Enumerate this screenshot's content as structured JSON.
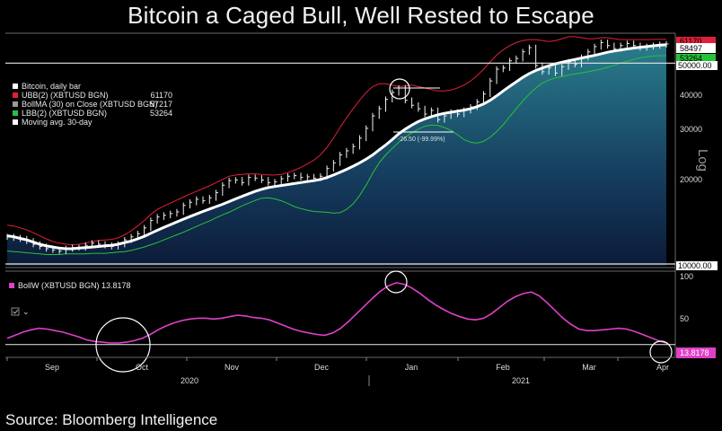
{
  "title": "Bitcoin a Caged Bull, Well Rested to Escape",
  "source": "Source: Bloomberg Intelligence",
  "chart_data": [
    {
      "type": "line",
      "y_scale": "log",
      "ylabel": "Log",
      "ylim": [
        9000,
        62000
      ],
      "y_ticks": [
        "40000",
        "30000",
        "20000"
      ],
      "x_ticks": [
        "Sep",
        "Oct",
        "Nov",
        "Dec",
        "Jan",
        "Feb",
        "Mar",
        "Apr"
      ],
      "x_years": [
        "2020",
        "2021"
      ],
      "legend": [
        {
          "name": "Bitcoin, daily bar",
          "value": "",
          "color": "#ffffff"
        },
        {
          "name": "UBB(2) (XBTUSD BGN)",
          "value": "61170",
          "color": "#e0203a"
        },
        {
          "name": "BollMA (30)  on Close (XBTUSD BGN)",
          "value": "57217",
          "color": "#9a9a9a"
        },
        {
          "name": "LBB(2) (XBTUSD BGN)",
          "value": "53264",
          "color": "#27c23a"
        },
        {
          "name": "Moving avg. 30-day",
          "value": "",
          "color": "#ffffff"
        }
      ],
      "last_value_tags": [
        {
          "text": "61170",
          "color": "#e0203a"
        },
        {
          "text": "58497",
          "color": "#ffffff"
        },
        {
          "text": "53264",
          "color": "#27c23a"
        }
      ],
      "reference_lines": [
        {
          "label": "50000.00",
          "value": 50000
        },
        {
          "label": "10000.00",
          "value": 10000
        }
      ],
      "annotation": "-26.50 (-99.99%)",
      "series": {
        "price_close": [
          11500,
          11400,
          11300,
          11100,
          10800,
          10600,
          10400,
          10300,
          10200,
          10400,
          10500,
          10500,
          10700,
          10900,
          10800,
          10700,
          10600,
          10800,
          11200,
          11500,
          11800,
          12400,
          13200,
          13600,
          13800,
          14000,
          14200,
          15000,
          15400,
          15800,
          15600,
          16000,
          16700,
          17800,
          18500,
          18600,
          18200,
          19000,
          18900,
          18600,
          18200,
          18300,
          18800,
          19200,
          19300,
          19000,
          19100,
          18900,
          19200,
          20500,
          21500,
          23000,
          23800,
          24700,
          26500,
          28800,
          32000,
          34000,
          36800,
          39000,
          40500,
          36500,
          35000,
          34000,
          32500,
          33500,
          31000,
          32000,
          33000,
          32500,
          33500,
          34500,
          36000,
          38500,
          43000,
          47500,
          48000,
          51000,
          52000,
          55000,
          57000,
          49000,
          46500,
          48000,
          46000,
          48500,
          50500,
          49500,
          52500,
          55000,
          57500,
          59500,
          58000,
          56500,
          58000,
          59000,
          58000,
          57000,
          57500,
          58000,
          58500,
          58800
        ],
        "ma30": [
          11600,
          11500,
          11350,
          11200,
          11000,
          10800,
          10650,
          10550,
          10450,
          10400,
          10400,
          10450,
          10500,
          10550,
          10600,
          10650,
          10700,
          10800,
          10950,
          11100,
          11300,
          11550,
          11850,
          12150,
          12450,
          12750,
          13050,
          13350,
          13650,
          13950,
          14250,
          14550,
          14850,
          15150,
          15500,
          15850,
          16200,
          16550,
          16900,
          17200,
          17450,
          17600,
          17750,
          17900,
          18050,
          18200,
          18350,
          18500,
          18700,
          19000,
          19400,
          19850,
          20350,
          20900,
          21500,
          22200,
          23000,
          24000,
          25000,
          26200,
          27500,
          28600,
          29600,
          30500,
          31200,
          31800,
          32300,
          32700,
          33000,
          33300,
          33600,
          34000,
          34600,
          35400,
          36500,
          37900,
          39500,
          41100,
          42700,
          44300,
          45800,
          47000,
          48000,
          48900,
          49700,
          50400,
          51000,
          51600,
          52200,
          52800,
          53400,
          54100,
          54800,
          55400,
          55900,
          56400,
          56800,
          57200,
          57500,
          57900,
          58200,
          58497
        ],
        "ubb": [
          12700,
          12600,
          12400,
          12200,
          11900,
          11600,
          11300,
          11050,
          10900,
          10800,
          10750,
          10800,
          10900,
          11050,
          11150,
          11200,
          11250,
          11400,
          11700,
          12100,
          12600,
          13200,
          13900,
          14500,
          14900,
          15300,
          15700,
          16100,
          16500,
          16900,
          17300,
          17700,
          18200,
          18700,
          19200,
          19400,
          19500,
          19600,
          19600,
          19500,
          19400,
          19400,
          19500,
          19800,
          20200,
          20700,
          21300,
          22000,
          23000,
          24500,
          26500,
          29000,
          31500,
          34000,
          36500,
          39000,
          41000,
          42000,
          42000,
          41500,
          41000,
          41200,
          41500,
          41000,
          40500,
          40000,
          39500,
          39500,
          39800,
          40500,
          41500,
          43000,
          45000,
          47500,
          50500,
          53500,
          56000,
          58000,
          59500,
          60500,
          61000,
          61000,
          60500,
          60000,
          60500,
          61500,
          62500,
          62500,
          62000,
          61500,
          61500,
          62000,
          62000,
          61500,
          61000,
          61000,
          61000,
          61000,
          61000,
          61100,
          61150,
          61170
        ],
        "lbb": [
          10200,
          10150,
          10100,
          10050,
          10000,
          9950,
          9900,
          9900,
          9900,
          9950,
          9950,
          9950,
          9950,
          10000,
          10000,
          10000,
          10050,
          10100,
          10150,
          10250,
          10400,
          10550,
          10750,
          10950,
          11200,
          11450,
          11700,
          11950,
          12250,
          12550,
          12850,
          13150,
          13500,
          13850,
          14150,
          14550,
          14950,
          15300,
          15650,
          15950,
          16000,
          15850,
          15600,
          15250,
          14850,
          14600,
          14400,
          14250,
          14200,
          14150,
          14050,
          14100,
          14500,
          15200,
          16300,
          17800,
          19700,
          21500,
          23000,
          24300,
          25600,
          26700,
          27700,
          28600,
          29300,
          29600,
          29500,
          29000,
          28300,
          27300,
          26200,
          25600,
          25400,
          25800,
          26700,
          28000,
          29700,
          31800,
          34000,
          36300,
          38500,
          40500,
          42200,
          43300,
          44100,
          44600,
          45200,
          45600,
          46000,
          46500,
          47000,
          47600,
          48300,
          49100,
          50000,
          50800,
          51600,
          52300,
          52800,
          53100,
          53200,
          53264
        ]
      }
    },
    {
      "type": "line",
      "legend": [
        {
          "name": "BollW (XBTUSD BGN) 13.8178",
          "color": "#e040c8"
        }
      ],
      "ylim": [
        0,
        100
      ],
      "y_ticks": [
        "100",
        "50"
      ],
      "last_value_tag": "13.8178",
      "series": {
        "bollw": [
          20,
          24,
          28,
          31,
          33,
          32,
          30,
          28,
          25,
          22,
          18,
          16,
          15,
          14,
          14,
          15,
          17,
          20,
          25,
          31,
          36,
          40,
          43,
          45,
          46,
          46,
          45,
          46,
          48,
          50,
          49,
          47,
          46,
          44,
          40,
          36,
          32,
          29,
          27,
          25,
          24,
          27,
          33,
          42,
          52,
          62,
          72,
          81,
          88,
          92,
          90,
          85,
          78,
          70,
          63,
          57,
          52,
          48,
          45,
          44,
          46,
          52,
          60,
          68,
          74,
          78,
          80,
          75,
          66,
          56,
          46,
          38,
          32,
          30,
          30,
          31,
          32,
          33,
          32,
          29,
          25,
          21,
          17,
          14
        ]
      },
      "highlight_circles": [
        "Oct low",
        "Jan peak",
        "Apr current"
      ]
    }
  ]
}
